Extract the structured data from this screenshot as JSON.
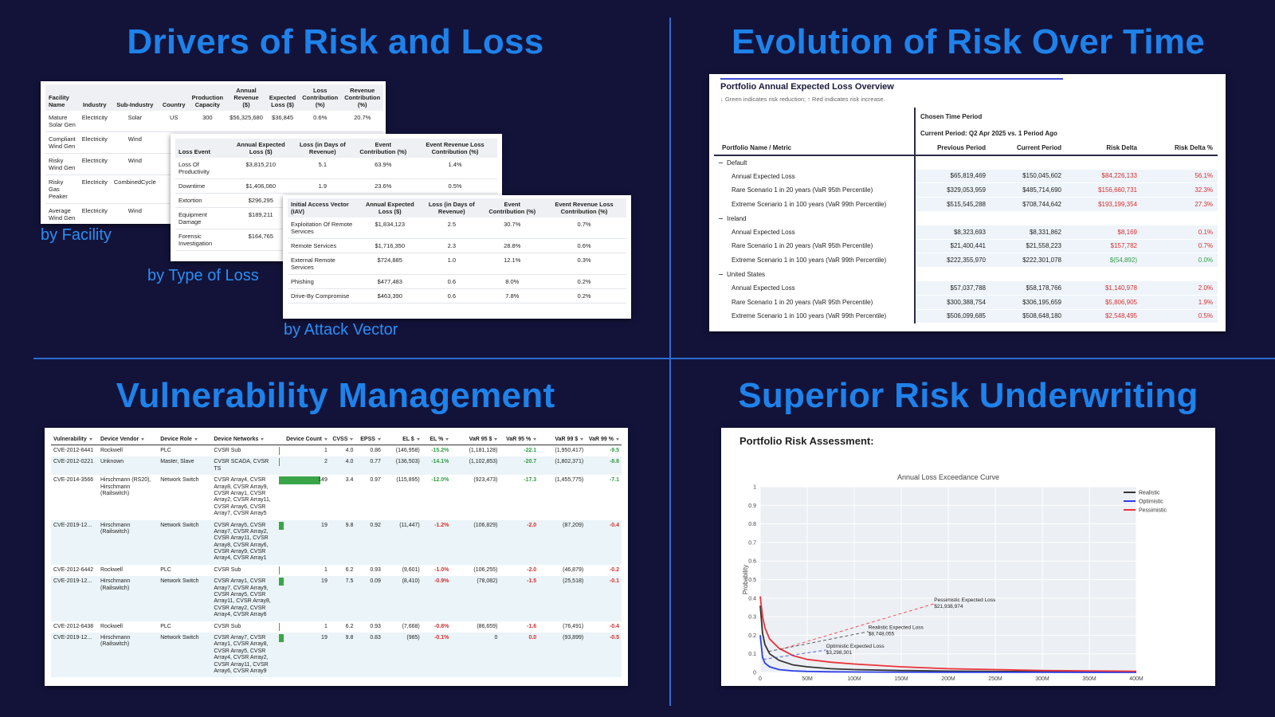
{
  "drivers": {
    "title": "Drivers of Risk and Loss",
    "facility": {
      "caption": "by Facility",
      "headers": [
        "Facility Name",
        "Industry",
        "Sub-Industry",
        "Country",
        "Production Capacity",
        "Annual Revenue ($)",
        "Expected Loss ($)",
        "Loss Contribution (%)",
        "Revenue Contribution (%)"
      ],
      "rows": [
        [
          "Mature Solar Gen",
          "Electricity",
          "Solar",
          "US",
          "300",
          "$56,325,680",
          "$36,845",
          "0.6%",
          "20.7%"
        ],
        [
          "Compliant Wind Gen",
          "Electricity",
          "Wind"
        ],
        [
          "Risky Wind Gen",
          "Electricity",
          "Wind"
        ],
        [
          "Risky Gas Peaker",
          "Electricity",
          "CombinedCycle"
        ],
        [
          "Average Wind Gen",
          "Electricity",
          "Wind"
        ]
      ]
    },
    "loss_type": {
      "caption": "by Type of Loss",
      "headers": [
        "Loss Event",
        "Annual Expected Loss ($)",
        "Loss (in Days of Revenue)",
        "Event Contribution (%)",
        "Event Revenue Loss Contribution (%)"
      ],
      "rows": [
        [
          "Loss Of Productivity",
          "$3,815,210",
          "5.1",
          "63.9%",
          "1.4%"
        ],
        [
          "Downtime",
          "$1,406,060",
          "1.9",
          "23.6%",
          "0.5%"
        ],
        [
          "Extortion",
          "$296,295"
        ],
        [
          "Equipment Damage",
          "$189,211"
        ],
        [
          "Forensic Investigation",
          "$164,765"
        ]
      ]
    },
    "attack_vector": {
      "caption": "by Attack Vector",
      "headers": [
        "Initial Access Vector (IAV)",
        "Annual Expected Loss ($)",
        "Loss (in Days of Revenue)",
        "Event Contribution (%)",
        "Event Revenue Loss Contribution (%)"
      ],
      "rows": [
        [
          "Exploitation Of Remote Services",
          "$1,834,123",
          "2.5",
          "30.7%",
          "0.7%"
        ],
        [
          "Remote Services",
          "$1,716,350",
          "2.3",
          "28.8%",
          "0.6%"
        ],
        [
          "External Remote Services",
          "$724,885",
          "1.0",
          "12.1%",
          "0.3%"
        ],
        [
          "Phishing",
          "$477,483",
          "0.6",
          "8.0%",
          "0.2%"
        ],
        [
          "Drive-By Compromise",
          "$463,390",
          "0.6",
          "7.8%",
          "0.2%"
        ]
      ]
    }
  },
  "evolution": {
    "title": "Evolution of Risk Over Time",
    "panel_title": "Portfolio Annual Expected Loss Overview",
    "subtitle": "↓ Green indicates risk reduction; ↑ Red indicates risk increase.",
    "column_group": "Chosen Time Period",
    "period": "Current Period: Q2 Apr 2025 vs. 1 Period Ago",
    "row_header": "Portfolio Name / Metric",
    "headers": [
      "Previous Period",
      "Current Period",
      "Risk Delta",
      "Risk Delta %"
    ],
    "groups": [
      {
        "name": "Default",
        "rows": [
          {
            "metric": "Annual Expected Loss",
            "values": [
              "$65,819,469",
              "$150,045,602",
              "$84,226,133",
              "56.1%"
            ],
            "color": "#d62f2f"
          },
          {
            "metric": "Rare Scenario 1 in 20 years (VaR 95th Percentile)",
            "values": [
              "$329,053,959",
              "$485,714,690",
              "$156,660,731",
              "32.3%"
            ],
            "color": "#d62f2f"
          },
          {
            "metric": "Extreme Scenario 1 in 100 years (VaR 99th Percentile)",
            "values": [
              "$515,545,288",
              "$708,744,642",
              "$193,199,354",
              "27.3%"
            ],
            "color": "#d62f2f"
          }
        ]
      },
      {
        "name": "Ireland",
        "rows": [
          {
            "metric": "Annual Expected Loss",
            "values": [
              "$8,323,693",
              "$8,331,862",
              "$8,169",
              "0.1%"
            ],
            "color": "#d62f2f"
          },
          {
            "metric": "Rare Scenario 1 in 20 years (VaR 95th Percentile)",
            "values": [
              "$21,400,441",
              "$21,558,223",
              "$157,782",
              "0.7%"
            ],
            "color": "#d62f2f"
          },
          {
            "metric": "Extreme Scenario 1 in 100 years (VaR 99th Percentile)",
            "values": [
              "$222,355,970",
              "$222,301,078",
              "$(54,892)",
              "0.0%"
            ],
            "color": "#2e9e44"
          }
        ]
      },
      {
        "name": "United States",
        "rows": [
          {
            "metric": "Annual Expected Loss",
            "values": [
              "$57,037,788",
              "$58,178,766",
              "$1,140,978",
              "2.0%"
            ],
            "color": "#d62f2f"
          },
          {
            "metric": "Rare Scenario 1 in 20 years (VaR 95th Percentile)",
            "values": [
              "$300,388,754",
              "$306,195,659",
              "$5,806,905",
              "1.9%"
            ],
            "color": "#d62f2f"
          },
          {
            "metric": "Extreme Scenario 1 in 100 years (VaR 99th Percentile)",
            "values": [
              "$506,099,685",
              "$508,648,180",
              "$2,548,495",
              "0.5%"
            ],
            "color": "#d62f2f"
          }
        ]
      }
    ]
  },
  "vulnerability": {
    "title": "Vulnerability Management",
    "headers": [
      "Vulnerability",
      "Device Vendor",
      "Device Role",
      "Device Networks",
      "Device Count",
      "CVSS",
      "EPSS",
      "EL $",
      "EL %",
      "VaR 95 $",
      "VaR 95 %",
      "VaR 99 $",
      "VaR 99 %"
    ],
    "rows": [
      [
        "CVE-2012-6441",
        "Rockwell",
        "PLC",
        "CVSR Sub",
        1,
        "4.0",
        "0.86",
        "(146,958)",
        "-15.2%",
        "(1,181,128)",
        "-22.1",
        "(1,950,417)",
        "-9.5"
      ],
      [
        "CVE-2012-0221",
        "Unknown",
        "Master, Slave",
        "CVSR SCADA, CVSR TS",
        2,
        "4.0",
        "0.77",
        "(136,503)",
        "-14.1%",
        "(1,102,853)",
        "-20.7",
        "(1,802,371)",
        "-8.8"
      ],
      [
        "CVE-2014-3566",
        "Hirschmann (RS20), Hirschmann (Railswitch)",
        "Network Switch",
        "CVSR Array4, CVSR Array8, CVSR Array9, CVSR Array1, CVSR Array2, CVSR Array11, CVSR Array6, CVSR Array7, CVSR Array5",
        149,
        "3.4",
        "0.97",
        "(115,895)",
        "-12.0%",
        "(923,473)",
        "-17.3",
        "(1,455,775)",
        "-7.1"
      ],
      [
        "CVE-2019-12...",
        "Hirschmann (Railswitch)",
        "Network Switch",
        "CVSR Array5, CVSR Array7, CVSR Array2, CVSR Array11, CVSR Array8, CVSR Array6, CVSR Array9, CVSR Array4, CVSR Array1",
        19,
        "9.8",
        "0.92",
        "(11,447)",
        "-1.2%",
        "(106,829)",
        "-2.0",
        "(87,209)",
        "-0.4"
      ],
      [
        "CVE-2012-6442",
        "Rockwell",
        "PLC",
        "CVSR Sub",
        1,
        "6.2",
        "0.93",
        "(9,601)",
        "-1.0%",
        "(106,255)",
        "-2.0",
        "(46,879)",
        "-0.2"
      ],
      [
        "CVE-2019-12...",
        "Hirschmann (Railswitch)",
        "Network Switch",
        "CVSR Array1, CVSR Array7, CVSR Array9, CVSR Array5, CVSR Array11, CVSR Array8, CVSR Array2, CVSR Array4, CVSR Array6",
        19,
        "7.5",
        "0.09",
        "(8,410)",
        "-0.9%",
        "(78,082)",
        "-1.5",
        "(25,518)",
        "-0.1"
      ],
      [
        "CVE-2012-6438",
        "Rockwell",
        "PLC",
        "CVSR Sub",
        1,
        "6.2",
        "0.93",
        "(7,668)",
        "-0.8%",
        "(86,659)",
        "-1.6",
        "(76,491)",
        "-0.4"
      ],
      [
        "CVE-2019-12...",
        "Hirschmann (Railswitch)",
        "Network Switch",
        "CVSR Array7, CVSR Array1, CVSR Array8, CVSR Array5, CVSR Array4, CVSR Array2, CVSR Array11, CVSR Array6, CVSR Array9",
        19,
        "9.8",
        "0.83",
        "(985)",
        "-0.1%",
        "0",
        "0.0",
        "(93,899)",
        "-0.5"
      ]
    ],
    "trend_colors": [
      "#2e9e44",
      "#2e9e44",
      "#2e9e44",
      "#d62f2f",
      "#d62f2f",
      "#d62f2f",
      "#d62f2f",
      "#d62f2f"
    ],
    "count_bar_color": "#3aa548"
  },
  "underwriting": {
    "title": "Superior Risk Underwriting",
    "heading": "Portfolio Risk Assessment:"
  },
  "chart_data": {
    "type": "line",
    "title": "Annual Loss Exceedance Curve",
    "y_label": "Probability",
    "x": [
      0,
      2500000,
      5000000,
      10000000,
      20000000,
      35000000,
      50000000,
      75000000,
      100000000,
      150000000,
      200000000,
      250000000,
      300000000,
      350000000,
      400000000
    ],
    "series": [
      {
        "name": "Realistic",
        "color": "#333333",
        "values": [
          0.36,
          0.21,
          0.15,
          0.1,
          0.065,
          0.04,
          0.03,
          0.02,
          0.015,
          0.01,
          0.007,
          0.005,
          0.004,
          0.003,
          0.002
        ]
      },
      {
        "name": "Optimistic",
        "color": "#2b3ee6",
        "values": [
          0.2,
          0.08,
          0.05,
          0.03,
          0.015,
          0.008,
          0.005,
          0.003,
          0.002,
          0.001,
          0.0008,
          0.0005,
          0.0004,
          0.0003,
          0.0002
        ]
      },
      {
        "name": "Pessimistic",
        "color": "#ea3339",
        "values": [
          0.41,
          0.3,
          0.24,
          0.18,
          0.13,
          0.09,
          0.07,
          0.055,
          0.045,
          0.03,
          0.02,
          0.015,
          0.01,
          0.008,
          0.006
        ]
      }
    ],
    "annotations": [
      {
        "text": "Realistic Expected Loss",
        "value": 8748055,
        "value_label": "$8,748,055"
      },
      {
        "text": "Optimistic Expected Loss",
        "value": 3298301,
        "value_label": "$3,298,301"
      },
      {
        "text": "Pessimistic Expected Loss",
        "value": 21938974,
        "value_label": "$21,938,974"
      }
    ],
    "xlim": [
      0,
      400000000
    ],
    "ylim": [
      0,
      1
    ],
    "xticks": [
      0,
      {
        "value": 50000000,
        "label": "50M"
      },
      {
        "value": 100000000,
        "label": "100M"
      },
      {
        "value": 150000000,
        "label": "150M"
      },
      {
        "value": 200000000,
        "label": "200M"
      },
      {
        "value": 250000000,
        "label": "250M"
      },
      {
        "value": 300000000,
        "label": "300M"
      },
      {
        "value": 350000000,
        "label": "350M"
      },
      {
        "value": 400000000,
        "label": "400M"
      }
    ],
    "yticks": [
      0,
      0.1,
      0.2,
      0.3,
      0.4,
      0.5,
      0.6,
      0.7,
      0.8,
      0.9,
      1
    ],
    "grid": true,
    "legend": "top-right"
  }
}
